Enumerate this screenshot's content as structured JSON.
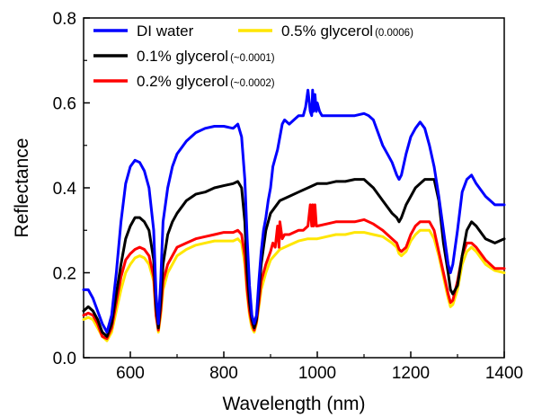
{
  "chart_data": {
    "type": "line",
    "title": "",
    "xlabel": "Wavelength (nm)",
    "ylabel": "Reflectance",
    "xlim": [
      500,
      1400
    ],
    "ylim": [
      0.0,
      0.8
    ],
    "xticks": [
      600,
      800,
      1000,
      1200,
      1400
    ],
    "yticks": [
      0.0,
      0.2,
      0.4,
      0.6,
      0.8
    ],
    "xtick_labels": [
      "600",
      "800",
      "1000",
      "1200",
      "1400"
    ],
    "ytick_labels": [
      "0.0",
      "0.2",
      "0.4",
      "0.6",
      "0.8"
    ],
    "grid": false,
    "legend_position": "top-left",
    "series": [
      {
        "name": "DI water",
        "note": "",
        "color": "#0000ff",
        "x": [
          500,
          510,
          520,
          530,
          540,
          550,
          560,
          570,
          580,
          590,
          600,
          610,
          620,
          630,
          640,
          650,
          655,
          660,
          665,
          670,
          680,
          690,
          700,
          720,
          740,
          760,
          780,
          800,
          820,
          830,
          838,
          845,
          850,
          855,
          860,
          865,
          870,
          875,
          880,
          885,
          890,
          895,
          900,
          905,
          910,
          915,
          920,
          925,
          930,
          940,
          950,
          960,
          970,
          975,
          980,
          985,
          988,
          990,
          992,
          995,
          998,
          1000,
          1005,
          1010,
          1020,
          1040,
          1060,
          1080,
          1100,
          1110,
          1120,
          1130,
          1140,
          1150,
          1160,
          1170,
          1175,
          1180,
          1190,
          1200,
          1210,
          1220,
          1230,
          1240,
          1250,
          1260,
          1270,
          1280,
          1285,
          1290,
          1300,
          1310,
          1320,
          1330,
          1340,
          1360,
          1380,
          1400
        ],
        "values": [
          0.16,
          0.16,
          0.14,
          0.11,
          0.08,
          0.06,
          0.1,
          0.2,
          0.32,
          0.41,
          0.45,
          0.465,
          0.46,
          0.44,
          0.4,
          0.3,
          0.15,
          0.08,
          0.18,
          0.32,
          0.4,
          0.45,
          0.48,
          0.51,
          0.53,
          0.54,
          0.545,
          0.545,
          0.54,
          0.55,
          0.52,
          0.42,
          0.28,
          0.17,
          0.1,
          0.08,
          0.1,
          0.18,
          0.25,
          0.3,
          0.33,
          0.37,
          0.4,
          0.45,
          0.47,
          0.49,
          0.52,
          0.55,
          0.56,
          0.55,
          0.56,
          0.57,
          0.57,
          0.59,
          0.63,
          0.58,
          0.57,
          0.63,
          0.58,
          0.62,
          0.58,
          0.6,
          0.58,
          0.57,
          0.57,
          0.57,
          0.57,
          0.57,
          0.575,
          0.57,
          0.56,
          0.53,
          0.5,
          0.48,
          0.46,
          0.43,
          0.42,
          0.43,
          0.48,
          0.52,
          0.54,
          0.555,
          0.54,
          0.5,
          0.45,
          0.38,
          0.3,
          0.22,
          0.2,
          0.22,
          0.3,
          0.39,
          0.42,
          0.43,
          0.41,
          0.38,
          0.36,
          0.36
        ]
      },
      {
        "name": "0.5% glycerol",
        "note": "(0.0006)",
        "color": "#ffe600",
        "x": [
          500,
          510,
          520,
          530,
          540,
          550,
          560,
          570,
          580,
          590,
          600,
          610,
          620,
          630,
          640,
          650,
          655,
          660,
          665,
          670,
          680,
          690,
          700,
          720,
          740,
          760,
          780,
          800,
          820,
          830,
          838,
          845,
          850,
          855,
          860,
          865,
          870,
          875,
          880,
          890,
          900,
          920,
          940,
          960,
          980,
          990,
          1000,
          1020,
          1040,
          1060,
          1080,
          1100,
          1120,
          1140,
          1160,
          1170,
          1175,
          1180,
          1190,
          1200,
          1210,
          1220,
          1230,
          1240,
          1250,
          1260,
          1270,
          1280,
          1285,
          1290,
          1300,
          1310,
          1320,
          1330,
          1340,
          1360,
          1380,
          1400
        ],
        "values": [
          0.09,
          0.095,
          0.09,
          0.07,
          0.05,
          0.04,
          0.06,
          0.11,
          0.16,
          0.2,
          0.22,
          0.235,
          0.24,
          0.235,
          0.22,
          0.18,
          0.1,
          0.06,
          0.1,
          0.16,
          0.2,
          0.22,
          0.24,
          0.255,
          0.265,
          0.27,
          0.275,
          0.275,
          0.275,
          0.28,
          0.27,
          0.22,
          0.15,
          0.1,
          0.07,
          0.06,
          0.08,
          0.12,
          0.16,
          0.2,
          0.23,
          0.255,
          0.265,
          0.275,
          0.28,
          0.28,
          0.28,
          0.285,
          0.29,
          0.29,
          0.295,
          0.295,
          0.29,
          0.285,
          0.27,
          0.26,
          0.245,
          0.24,
          0.25,
          0.275,
          0.29,
          0.3,
          0.3,
          0.3,
          0.28,
          0.24,
          0.19,
          0.14,
          0.12,
          0.125,
          0.16,
          0.22,
          0.25,
          0.26,
          0.25,
          0.22,
          0.205,
          0.2
        ]
      },
      {
        "name": "0.1% glycerol",
        "note": "(~0.0001)",
        "color": "#000000",
        "x": [
          500,
          510,
          520,
          530,
          540,
          550,
          560,
          570,
          580,
          590,
          600,
          610,
          620,
          630,
          640,
          650,
          655,
          660,
          665,
          670,
          680,
          690,
          700,
          720,
          740,
          760,
          780,
          800,
          820,
          830,
          838,
          845,
          850,
          855,
          860,
          865,
          870,
          875,
          880,
          890,
          900,
          920,
          940,
          960,
          980,
          1000,
          1020,
          1040,
          1060,
          1080,
          1100,
          1120,
          1140,
          1160,
          1170,
          1175,
          1180,
          1190,
          1200,
          1210,
          1220,
          1230,
          1240,
          1250,
          1260,
          1270,
          1280,
          1285,
          1290,
          1300,
          1310,
          1320,
          1330,
          1340,
          1360,
          1380,
          1400
        ],
        "values": [
          0.11,
          0.12,
          0.11,
          0.09,
          0.06,
          0.05,
          0.08,
          0.15,
          0.22,
          0.28,
          0.31,
          0.33,
          0.33,
          0.32,
          0.3,
          0.23,
          0.12,
          0.07,
          0.13,
          0.22,
          0.29,
          0.32,
          0.34,
          0.37,
          0.385,
          0.39,
          0.4,
          0.405,
          0.41,
          0.415,
          0.4,
          0.32,
          0.2,
          0.13,
          0.09,
          0.07,
          0.09,
          0.15,
          0.22,
          0.3,
          0.34,
          0.37,
          0.38,
          0.39,
          0.4,
          0.41,
          0.41,
          0.415,
          0.415,
          0.42,
          0.42,
          0.4,
          0.37,
          0.34,
          0.33,
          0.32,
          0.33,
          0.36,
          0.38,
          0.4,
          0.41,
          0.42,
          0.42,
          0.42,
          0.37,
          0.27,
          0.2,
          0.16,
          0.15,
          0.17,
          0.24,
          0.3,
          0.32,
          0.31,
          0.28,
          0.27,
          0.28
        ]
      },
      {
        "name": "0.2% glycerol",
        "note": "(~0.0002)",
        "color": "#ff0000",
        "x": [
          500,
          510,
          520,
          530,
          540,
          550,
          560,
          570,
          580,
          590,
          600,
          610,
          620,
          630,
          640,
          650,
          655,
          660,
          665,
          670,
          680,
          690,
          700,
          720,
          740,
          760,
          780,
          800,
          820,
          830,
          838,
          845,
          850,
          855,
          860,
          865,
          870,
          875,
          880,
          890,
          900,
          905,
          910,
          915,
          918,
          920,
          925,
          930,
          940,
          950,
          960,
          970,
          980,
          985,
          988,
          990,
          992,
          995,
          998,
          1000,
          1020,
          1040,
          1060,
          1080,
          1100,
          1120,
          1140,
          1160,
          1170,
          1175,
          1180,
          1190,
          1200,
          1210,
          1220,
          1230,
          1240,
          1250,
          1260,
          1270,
          1280,
          1285,
          1290,
          1300,
          1310,
          1320,
          1330,
          1340,
          1360,
          1380,
          1400
        ],
        "values": [
          0.1,
          0.105,
          0.1,
          0.08,
          0.05,
          0.045,
          0.07,
          0.13,
          0.19,
          0.23,
          0.245,
          0.255,
          0.26,
          0.255,
          0.24,
          0.19,
          0.1,
          0.065,
          0.11,
          0.18,
          0.22,
          0.24,
          0.26,
          0.27,
          0.28,
          0.285,
          0.29,
          0.295,
          0.295,
          0.3,
          0.29,
          0.24,
          0.16,
          0.11,
          0.08,
          0.065,
          0.085,
          0.13,
          0.18,
          0.22,
          0.25,
          0.27,
          0.26,
          0.31,
          0.26,
          0.32,
          0.28,
          0.29,
          0.29,
          0.295,
          0.3,
          0.3,
          0.31,
          0.36,
          0.31,
          0.36,
          0.31,
          0.36,
          0.31,
          0.31,
          0.315,
          0.32,
          0.32,
          0.32,
          0.325,
          0.315,
          0.3,
          0.28,
          0.27,
          0.255,
          0.25,
          0.26,
          0.29,
          0.31,
          0.32,
          0.32,
          0.32,
          0.3,
          0.25,
          0.2,
          0.15,
          0.13,
          0.135,
          0.18,
          0.24,
          0.27,
          0.27,
          0.26,
          0.23,
          0.21,
          0.21
        ]
      }
    ]
  }
}
